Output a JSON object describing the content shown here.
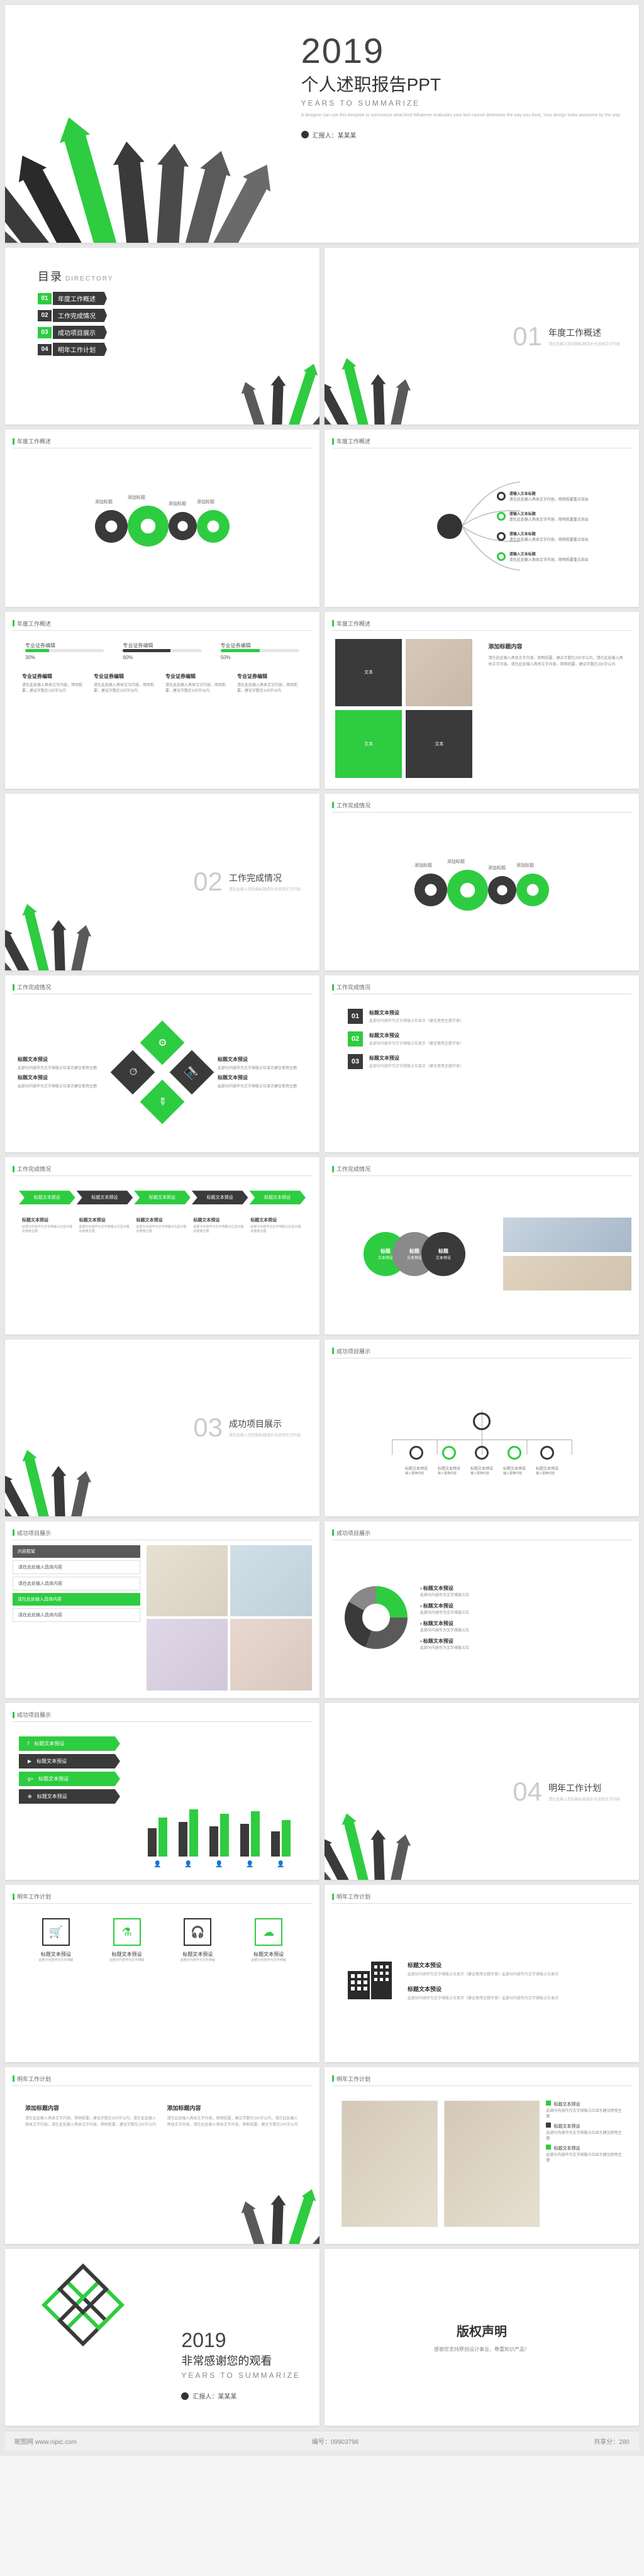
{
  "colors": {
    "green": "#2ECC40",
    "dark": "#3a3a3a",
    "darker": "#2a2a2a",
    "gray": "#8a8a8a",
    "light": "#cccccc"
  },
  "cover": {
    "year": "2019",
    "title": "个人述职报告PPT",
    "subtitle": "YEARS TO SUMMARIZE",
    "note": "A designer can use this template to summarize what kind Whatever evaluates your text cannot determine the way you think. Your design looks awesome by the way",
    "presenter": "汇报人：某某某"
  },
  "directory": {
    "title": "目录",
    "title_en": "DIRECTORY",
    "items": [
      {
        "num": "01",
        "label": "年度工作概述",
        "color": "#2ECC40"
      },
      {
        "num": "02",
        "label": "工作完成情况",
        "color": "#3a3a3a"
      },
      {
        "num": "03",
        "label": "成功项目展示",
        "color": "#2ECC40"
      },
      {
        "num": "04",
        "label": "明年工作计划",
        "color": "#3a3a3a"
      }
    ]
  },
  "sections": [
    {
      "num": "01",
      "label": "年度工作概述"
    },
    {
      "num": "02",
      "label": "工作完成情况"
    },
    {
      "num": "03",
      "label": "成功项目展示"
    },
    {
      "num": "04",
      "label": "明年工作计划"
    }
  ],
  "sec_sub": "请在此输入您的副标题或补充说明文字内容",
  "slide_header": "年度工作概述",
  "slide_header2": "工作完成情况",
  "slide_header3": "成功项目展示",
  "slide_header4": "明年工作计划",
  "gears_slide": {
    "labels": [
      "添加标题",
      "添加标题",
      "添加标题",
      "添加标题"
    ],
    "colors": [
      "#3a3a3a",
      "#2ECC40",
      "#3a3a3a",
      "#2ECC40"
    ]
  },
  "mindmap": {
    "nodes": [
      {
        "color": "#3a3a3a",
        "title": "请输入文本标题",
        "desc": "请在此处输入具体文字内容，简明扼要重点突出"
      },
      {
        "color": "#2ECC40",
        "title": "请输入文本标题",
        "desc": "请在此处输入具体文字内容，简明扼要重点突出"
      },
      {
        "color": "#3a3a3a",
        "title": "请输入文本标题",
        "desc": "请在此处输入具体文字内容，简明扼要重点突出"
      },
      {
        "color": "#2ECC40",
        "title": "请输入文本标题",
        "desc": "请在此处输入具体文字内容，简明扼要重点突出"
      }
    ]
  },
  "bars": [
    {
      "pct": 30,
      "label": "专业证券编辑",
      "color": "#2ECC40"
    },
    {
      "pct": 60,
      "label": "专业证券编辑",
      "color": "#3a3a3a"
    },
    {
      "pct": 50,
      "label": "专业证券编辑",
      "color": "#2ECC40"
    }
  ],
  "cols": [
    {
      "h": "专业证券编辑",
      "t": "请在此处输入具体文字内容，简明扼要，建议字数在100字以内"
    },
    {
      "h": "专业证券编辑",
      "t": "请在此处输入具体文字内容，简明扼要，建议字数在100字以内"
    },
    {
      "h": "专业证券编辑",
      "t": "请在此处输入具体文字内容，简明扼要，建议字数在100字以内"
    },
    {
      "h": "专业证券编辑",
      "t": "请在此处输入具体文字内容，简明扼要，建议字数在100字以内"
    }
  ],
  "grid4": [
    {
      "bg": "#3a3a3a",
      "t": "文本"
    },
    {
      "bg": "img",
      "t": ""
    },
    {
      "bg": "#2ECC40",
      "t": "文本"
    },
    {
      "bg": "#3a3a3a",
      "t": "文本"
    }
  ],
  "diamonds": [
    {
      "c": "#2ECC40",
      "icon": "⚙"
    },
    {
      "c": "#3a3a3a",
      "icon": "⏱"
    },
    {
      "c": "#3a3a3a",
      "icon": "📷"
    },
    {
      "c": "#2ECC40",
      "icon": "✎"
    }
  ],
  "numlist": [
    {
      "n": "01",
      "c": "#3a3a3a",
      "h": "标题文本预设",
      "t": "此部分内容作为文字排版占位显示（建议使用主题字体）"
    },
    {
      "n": "02",
      "c": "#2ECC40",
      "h": "标题文本预设",
      "t": "此部分内容作为文字排版占位显示（建议使用主题字体）"
    },
    {
      "n": "03",
      "c": "#3a3a3a",
      "h": "标题文本预设",
      "t": "此部分内容作为文字排版占位显示（建议使用主题字体）"
    }
  ],
  "chevrons": [
    {
      "c": "#2ECC40",
      "t": "标题文本预设"
    },
    {
      "c": "#3a3a3a",
      "t": "标题文本预设"
    },
    {
      "c": "#2ECC40",
      "t": "标题文本预设"
    },
    {
      "c": "#3a3a3a",
      "t": "标题文本预设"
    },
    {
      "c": "#2ECC40",
      "t": "标题文本预设"
    }
  ],
  "chev_desc": {
    "h": "标题文本预设",
    "t": "此部分内容作为文字排版占位显示建议使用主题"
  },
  "circles3": [
    {
      "c": "#2ECC40",
      "t": "标题",
      "s": "文本预设"
    },
    {
      "c": "#8a8a8a",
      "t": "标题",
      "s": "文本预设"
    },
    {
      "c": "#3a3a3a",
      "t": "标题",
      "s": "文本预设"
    }
  ],
  "org": {
    "nodes": [
      {
        "c": "#3a3a3a"
      },
      {
        "c": "#2ECC40"
      },
      {
        "c": "#3a3a3a"
      },
      {
        "c": "#2ECC40"
      },
      {
        "c": "#3a3a3a"
      }
    ],
    "label": "标题文本预设",
    "sub": "输入替换内容"
  },
  "dash_chips": [
    {
      "bg": "#5a5a5a",
      "t": "内容框架"
    },
    {
      "bg": "#fff",
      "t": "请在此处输入具体内容"
    },
    {
      "bg": "#fff",
      "t": "请在此处输入具体内容"
    },
    {
      "bg": "#2ECC40",
      "t": "请在此处输入具体内容"
    },
    {
      "bg": "#fff",
      "t": "请在此处输入具体内容"
    }
  ],
  "pie_items": [
    {
      "h": "标题文本预设",
      "t": "此部分内容作为文字排版占位"
    },
    {
      "h": "标题文本预设",
      "t": "此部分内容作为文字排版占位"
    },
    {
      "h": "标题文本预设",
      "t": "此部分内容作为文字排版占位"
    },
    {
      "h": "标题文本预设",
      "t": "此部分内容作为文字排版占位"
    }
  ],
  "feat_labels": [
    {
      "c": "#2ECC40",
      "t": "标题文本预设",
      "icon": "f"
    },
    {
      "c": "#3a3a3a",
      "t": "标题文本预设",
      "icon": "▶"
    },
    {
      "c": "#2ECC40",
      "t": "标题文本预设",
      "icon": "g+"
    },
    {
      "c": "#3a3a3a",
      "t": "标题文本预设",
      "icon": "⊕"
    }
  ],
  "barchart": {
    "groups": 5,
    "heights": [
      [
        45,
        62
      ],
      [
        55,
        75
      ],
      [
        48,
        68
      ],
      [
        52,
        72
      ],
      [
        40,
        58
      ]
    ],
    "colors": [
      "#3a3a3a",
      "#2ECC40"
    ],
    "icons": [
      "👤",
      "👤",
      "👤",
      "👤",
      "👤"
    ]
  },
  "icon_cards": [
    {
      "icon": "🛒",
      "c": "#333",
      "h": "标题文本预设",
      "t": "此部分内容作为文字排版"
    },
    {
      "icon": "⚗",
      "c": "#2ECC40",
      "h": "标题文本预设",
      "t": "此部分内容作为文字排版"
    },
    {
      "icon": "🎧",
      "c": "#333",
      "h": "标题文本预设",
      "t": "此部分内容作为文字排版"
    },
    {
      "icon": "☁",
      "c": "#2ECC40",
      "h": "标题文本预设",
      "t": "此部分内容作为文字排版"
    }
  ],
  "building": {
    "h1": "标题文本预设",
    "t1": "此部分内容作为文字排版占位显示（建议使用主题字体）此部分内容作为文字排版占位显示",
    "h2": "标题文本预设",
    "t2": "此部分内容作为文字排版占位显示（建议使用主题字体）此部分内容作为文字排版占位显示"
  },
  "dual": {
    "h": "添加标题内容",
    "t": "请在此处输入具体文字内容，简明扼要，建议字数在200字以内，请在此处输入具体文字内容。请在此处输入具体文字内容，简明扼要，建议字数在200字以内"
  },
  "thanks": {
    "year": "2019",
    "title": "非常感谢您的观看",
    "subtitle": "YEARS TO SUMMARIZE",
    "presenter": "汇报人：某某某"
  },
  "copyright": {
    "title": "版权声明",
    "text": "感谢您支持原创设计事业，尊重知识产品！"
  },
  "footer": {
    "site": "昵图网 www.nipic.com",
    "id": "编号：09903796",
    "shared": "共享分：280"
  }
}
